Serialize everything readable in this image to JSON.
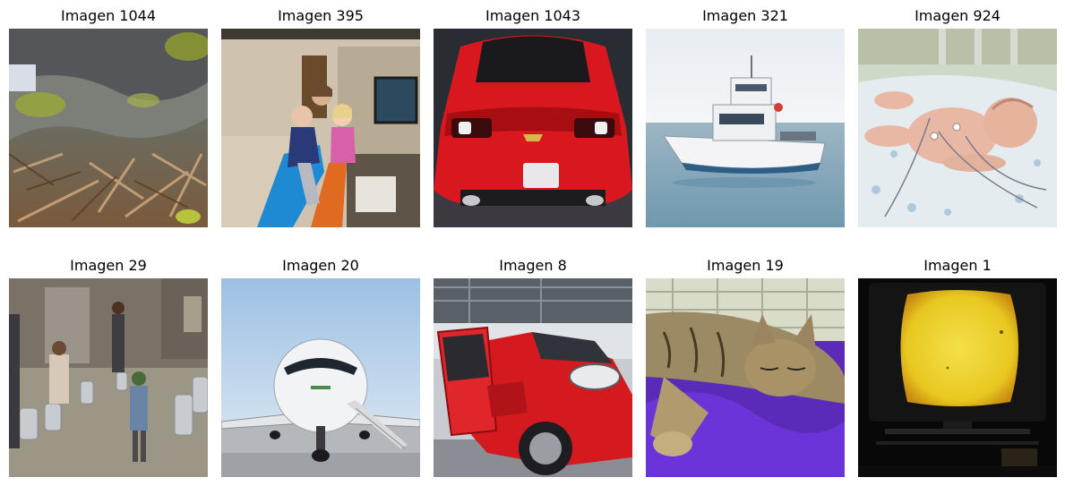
{
  "grid": {
    "items": [
      {
        "title": "Imagen 1044",
        "icon": "rock-moss-leaf-litter-photo"
      },
      {
        "title": "Imagen 395",
        "icon": "children-on-slide-photo"
      },
      {
        "title": "Imagen 1043",
        "icon": "red-sports-car-rear-photo"
      },
      {
        "title": "Imagen 321",
        "icon": "white-boat-on-sea-photo"
      },
      {
        "title": "Imagen 924",
        "icon": "newborn-baby-photo"
      },
      {
        "title": "Imagen 29",
        "icon": "street-milk-cans-people-photo"
      },
      {
        "title": "Imagen 20",
        "icon": "private-jet-front-photo"
      },
      {
        "title": "Imagen 8",
        "icon": "red-car-open-door-photo"
      },
      {
        "title": "Imagen 19",
        "icon": "tabby-cat-sleeping-photo"
      },
      {
        "title": "Imagen 1",
        "icon": "glowing-tv-screen-photo"
      }
    ]
  }
}
